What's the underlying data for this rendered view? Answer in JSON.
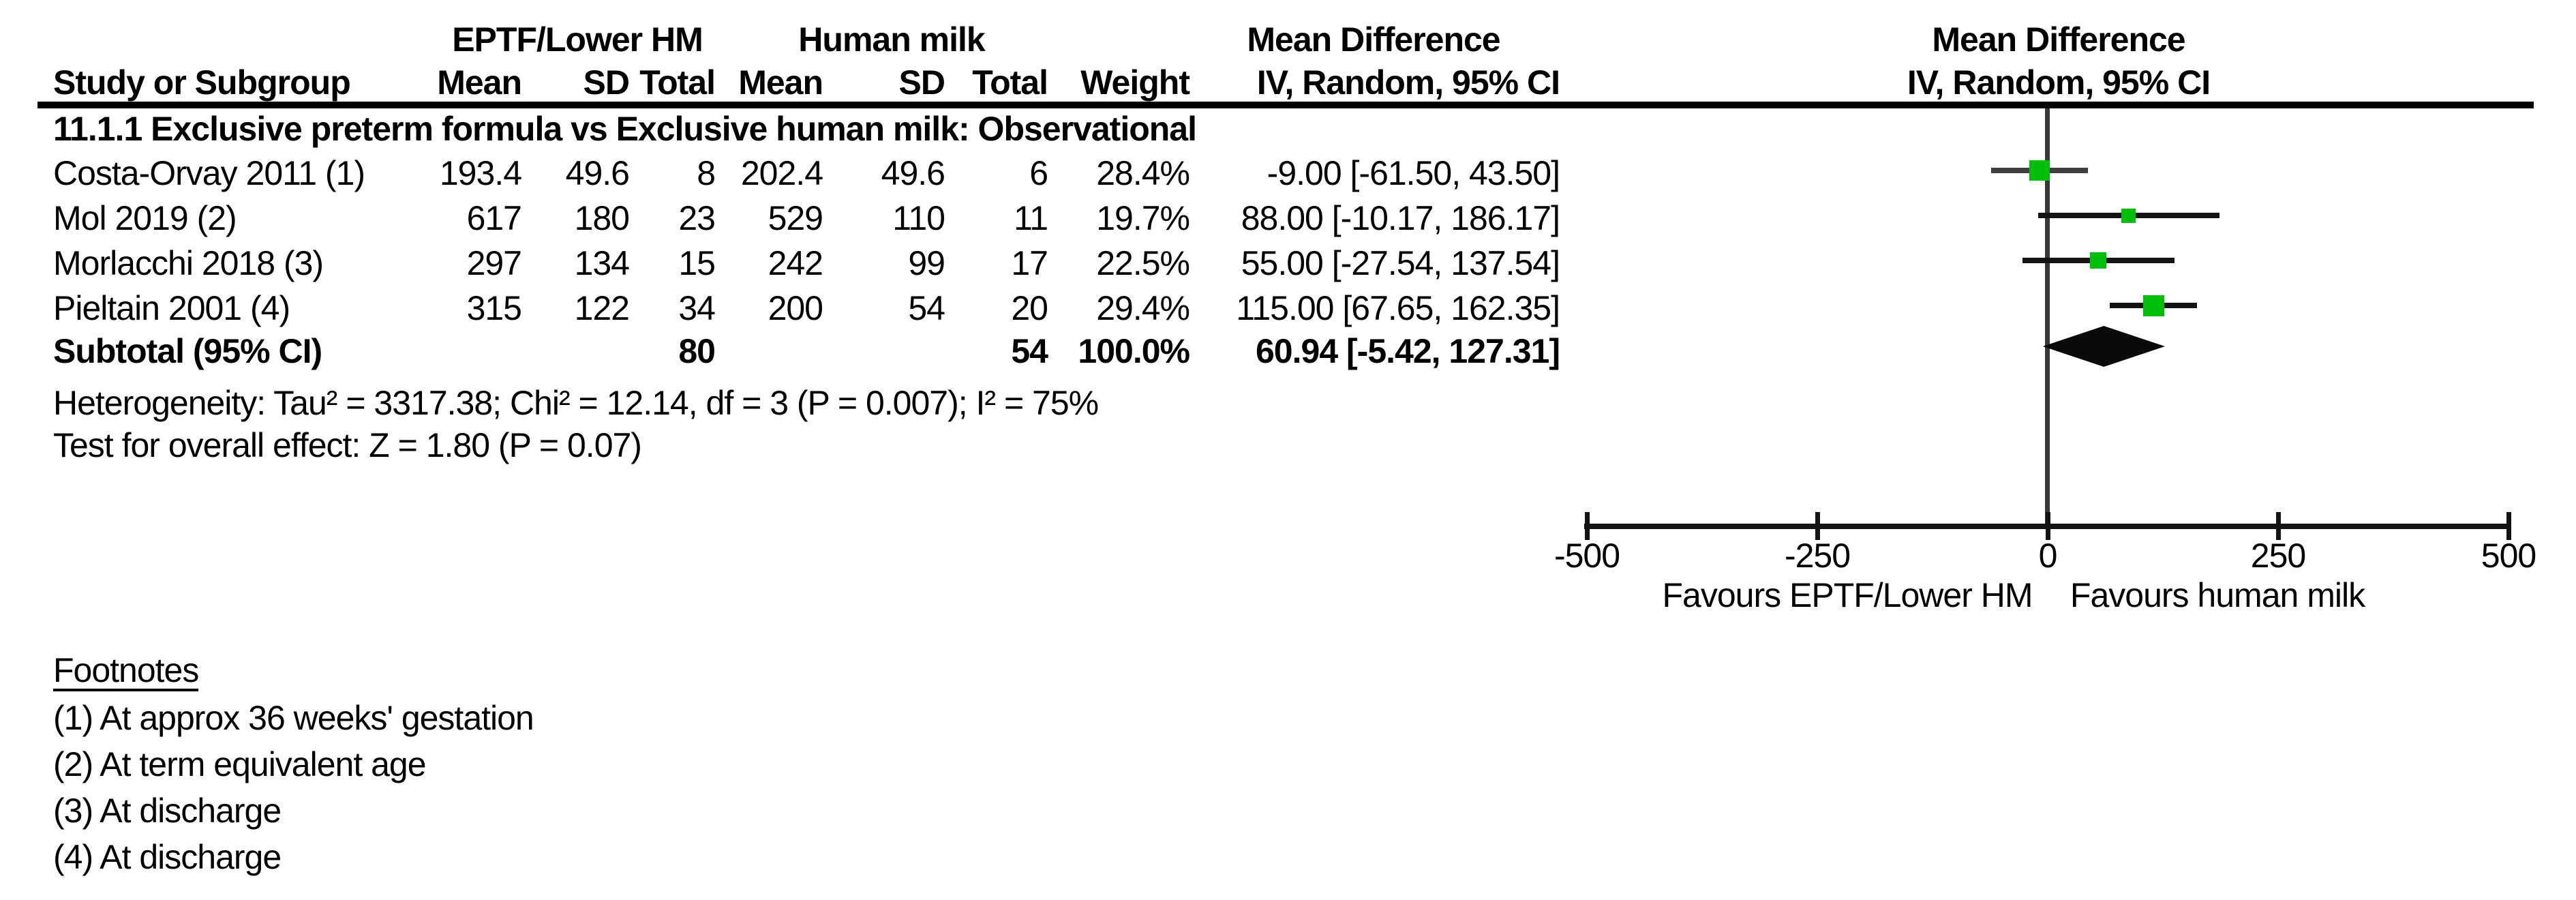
{
  "table": {
    "group_headers": {
      "group1": "EPTF/Lower HM",
      "group2": "Human milk",
      "effect_text_col": "Mean Difference",
      "effect_plot_col": "Mean Difference"
    },
    "column_headers": {
      "study": "Study or Subgroup",
      "mean1": "Mean",
      "sd1": "SD",
      "total1": "Total",
      "mean2": "Mean",
      "sd2": "SD",
      "total2": "Total",
      "weight": "Weight",
      "ci_text_col": "IV, Random, 95% CI",
      "ci_plot_col": "IV, Random, 95% CI"
    },
    "subgroup_title": "11.1.1 Exclusive preterm formula vs Exclusive human milk: Observational",
    "rows": [
      {
        "study": "Costa-Orvay 2011 (1)",
        "mean1": "193.4",
        "sd1": "49.6",
        "total1": "8",
        "mean2": "202.4",
        "sd2": "49.6",
        "total2": "6",
        "weight": "28.4%",
        "ci_text": "-9.00 [-61.50, 43.50]"
      },
      {
        "study": "Mol 2019 (2)",
        "mean1": "617",
        "sd1": "180",
        "total1": "23",
        "mean2": "529",
        "sd2": "110",
        "total2": "11",
        "weight": "19.7%",
        "ci_text": "88.00 [-10.17, 186.17]"
      },
      {
        "study": "Morlacchi 2018 (3)",
        "mean1": "297",
        "sd1": "134",
        "total1": "15",
        "mean2": "242",
        "sd2": "99",
        "total2": "17",
        "weight": "22.5%",
        "ci_text": "55.00 [-27.54, 137.54]"
      },
      {
        "study": "Pieltain 2001 (4)",
        "mean1": "315",
        "sd1": "122",
        "total1": "34",
        "mean2": "200",
        "sd2": "54",
        "total2": "20",
        "weight": "29.4%",
        "ci_text": "115.00 [67.65, 162.35]"
      }
    ],
    "subtotal": {
      "label": "Subtotal (95% CI)",
      "total1": "80",
      "total2": "54",
      "weight": "100.0%",
      "ci_text": "60.94 [-5.42, 127.31]"
    },
    "heterogeneity": "Heterogeneity: Tau² = 3317.38; Chi² = 12.14, df = 3 (P = 0.007); I² = 75%",
    "overall_effect": "Test for overall effect: Z = 1.80 (P = 0.07)"
  },
  "axis": {
    "ticks": [
      -500,
      -250,
      0,
      250,
      500
    ],
    "favours_left": "Favours EPTF/Lower HM",
    "favours_right": "Favours human milk"
  },
  "footnotes": {
    "title": "Footnotes",
    "items": [
      "(1) At approx 36 weeks' gestation",
      "(2) At term equivalent age",
      "(3) At discharge",
      "(4) At discharge"
    ]
  },
  "colors": {
    "marker_green": "#00BE0A",
    "diamond_black": "#0a0a0a",
    "zero_line_gray": "#383838",
    "axis_black": "#141414"
  },
  "chart_data": {
    "type": "forest",
    "title": "Mean Difference, IV, Random, 95% CI",
    "subgroup": "11.1.1 Exclusive preterm formula vs Exclusive human milk: Observational",
    "studies": [
      "Costa-Orvay 2011 (1)",
      "Mol 2019 (2)",
      "Morlacchi 2018 (3)",
      "Pieltain 2001 (4)"
    ],
    "estimates": [
      -9.0,
      88.0,
      55.0,
      115.0
    ],
    "ci_low": [
      -61.5,
      -10.17,
      -27.54,
      67.65
    ],
    "ci_high": [
      43.5,
      186.17,
      137.54,
      162.35
    ],
    "weights_pct": [
      28.4,
      19.7,
      22.5,
      29.4
    ],
    "totals_group1": [
      8,
      23,
      15,
      34
    ],
    "totals_group2": [
      6,
      11,
      17,
      20
    ],
    "subtotal": {
      "estimate": 60.94,
      "ci_low": -5.42,
      "ci_high": 127.31,
      "total1": 80,
      "total2": 54,
      "weight_pct": 100.0
    },
    "heterogeneity": {
      "tau2": 3317.38,
      "chi2": 12.14,
      "df": 3,
      "p": 0.007,
      "i2_pct": 75
    },
    "overall_effect": {
      "z": 1.8,
      "p": 0.07
    },
    "xlim": [
      -500,
      500
    ],
    "ticks": [
      -500,
      -250,
      0,
      250,
      500
    ],
    "xlabel_left": "Favours EPTF/Lower HM",
    "xlabel_right": "Favours human milk"
  }
}
